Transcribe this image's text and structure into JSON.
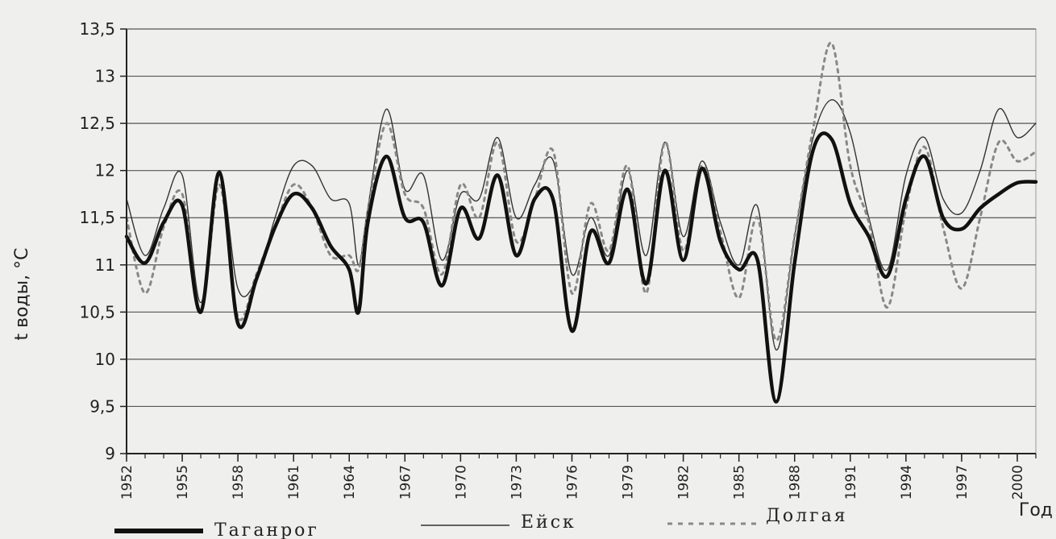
{
  "chart_data": {
    "type": "line",
    "title": "",
    "xlabel": "Год",
    "ylabel": "t воды, °C",
    "x_ticks": [
      "1952",
      "1955",
      "1958",
      "1961",
      "1964",
      "1967",
      "1970",
      "1973",
      "1976",
      "1979",
      "1982",
      "1985",
      "1988",
      "1991",
      "1994",
      "1997",
      "2000"
    ],
    "y_ticks": [
      "9",
      "9,5",
      "10",
      "10,5",
      "11",
      "11,5",
      "12",
      "12,5",
      "13",
      "13,5"
    ],
    "xlim": [
      1952,
      2001
    ],
    "ylim": [
      9,
      13.5
    ],
    "grid": true,
    "legend_position": "bottom",
    "series": [
      {
        "name": "Таганрог",
        "style": "thick-solid",
        "color": "#111111",
        "points": [
          [
            1952,
            11.3
          ],
          [
            1953,
            11.02
          ],
          [
            1954,
            11.45
          ],
          [
            1955,
            11.63
          ],
          [
            1956,
            10.5
          ],
          [
            1957,
            11.98
          ],
          [
            1958,
            10.38
          ],
          [
            1959,
            10.85
          ],
          [
            1960,
            11.4
          ],
          [
            1961,
            11.75
          ],
          [
            1962,
            11.6
          ],
          [
            1963,
            11.2
          ],
          [
            1964,
            10.95
          ],
          [
            1964.5,
            10.5
          ],
          [
            1965,
            11.45
          ],
          [
            1966,
            12.15
          ],
          [
            1967,
            11.5
          ],
          [
            1968,
            11.45
          ],
          [
            1969,
            10.78
          ],
          [
            1970,
            11.6
          ],
          [
            1971,
            11.28
          ],
          [
            1972,
            11.95
          ],
          [
            1973,
            11.1
          ],
          [
            1974,
            11.7
          ],
          [
            1975,
            11.68
          ],
          [
            1976,
            10.3
          ],
          [
            1977,
            11.35
          ],
          [
            1978,
            11.02
          ],
          [
            1979,
            11.8
          ],
          [
            1980,
            10.8
          ],
          [
            1981,
            12.0
          ],
          [
            1982,
            11.05
          ],
          [
            1983,
            12.02
          ],
          [
            1984,
            11.25
          ],
          [
            1985,
            10.95
          ],
          [
            1986,
            11.05
          ],
          [
            1987,
            9.55
          ],
          [
            1988,
            11.02
          ],
          [
            1989,
            12.22
          ],
          [
            1990,
            12.33
          ],
          [
            1991,
            11.65
          ],
          [
            1992,
            11.3
          ],
          [
            1993,
            10.88
          ],
          [
            1994,
            11.7
          ],
          [
            1995,
            12.15
          ],
          [
            1996,
            11.5
          ],
          [
            1997,
            11.38
          ],
          [
            1998,
            11.6
          ],
          [
            1999,
            11.75
          ],
          [
            2000,
            11.87
          ],
          [
            2001,
            11.88
          ]
        ]
      },
      {
        "name": "Ейск",
        "style": "thin-solid",
        "color": "#333333",
        "points": [
          [
            1952,
            11.7
          ],
          [
            1953,
            11.1
          ],
          [
            1954,
            11.6
          ],
          [
            1955,
            11.95
          ],
          [
            1956,
            10.6
          ],
          [
            1957,
            12.0
          ],
          [
            1958,
            10.75
          ],
          [
            1959,
            10.85
          ],
          [
            1960,
            11.5
          ],
          [
            1961,
            12.05
          ],
          [
            1962,
            12.05
          ],
          [
            1963,
            11.7
          ],
          [
            1964,
            11.65
          ],
          [
            1964.5,
            11.0
          ],
          [
            1965,
            11.6
          ],
          [
            1966,
            12.65
          ],
          [
            1967,
            11.8
          ],
          [
            1968,
            11.95
          ],
          [
            1969,
            11.05
          ],
          [
            1970,
            11.75
          ],
          [
            1971,
            11.7
          ],
          [
            1972,
            12.35
          ],
          [
            1973,
            11.5
          ],
          [
            1974,
            11.85
          ],
          [
            1975,
            12.1
          ],
          [
            1976,
            10.9
          ],
          [
            1977,
            11.5
          ],
          [
            1978,
            11.1
          ],
          [
            1979,
            12.0
          ],
          [
            1980,
            11.1
          ],
          [
            1981,
            12.3
          ],
          [
            1982,
            11.3
          ],
          [
            1983,
            12.1
          ],
          [
            1984,
            11.45
          ],
          [
            1985,
            11.0
          ],
          [
            1986,
            11.62
          ],
          [
            1987,
            10.1
          ],
          [
            1988,
            11.3
          ],
          [
            1989,
            12.35
          ],
          [
            1990,
            12.75
          ],
          [
            1991,
            12.4
          ],
          [
            1992,
            11.5
          ],
          [
            1993,
            10.95
          ],
          [
            1994,
            11.95
          ],
          [
            1995,
            12.35
          ],
          [
            1996,
            11.7
          ],
          [
            1997,
            11.55
          ],
          [
            1998,
            12.0
          ],
          [
            1999,
            12.65
          ],
          [
            2000,
            12.35
          ],
          [
            2001,
            12.5
          ]
        ]
      },
      {
        "name": "Долгая",
        "style": "dotted",
        "color": "#888888",
        "points": [
          [
            1952,
            11.5
          ],
          [
            1953,
            10.7
          ],
          [
            1954,
            11.4
          ],
          [
            1955,
            11.75
          ],
          [
            1956,
            10.5
          ],
          [
            1957,
            11.85
          ],
          [
            1958,
            10.45
          ],
          [
            1959,
            10.9
          ],
          [
            1960,
            11.4
          ],
          [
            1961,
            11.85
          ],
          [
            1962,
            11.6
          ],
          [
            1963,
            11.1
          ],
          [
            1964,
            11.1
          ],
          [
            1964.5,
            10.95
          ],
          [
            1965,
            11.55
          ],
          [
            1966,
            12.5
          ],
          [
            1967,
            11.75
          ],
          [
            1968,
            11.6
          ],
          [
            1969,
            10.9
          ],
          [
            1970,
            11.85
          ],
          [
            1971,
            11.5
          ],
          [
            1972,
            12.3
          ],
          [
            1973,
            11.25
          ],
          [
            1974,
            11.7
          ],
          [
            1975,
            12.2
          ],
          [
            1976,
            10.7
          ],
          [
            1977,
            11.65
          ],
          [
            1978,
            11.15
          ],
          [
            1979,
            12.05
          ],
          [
            1980,
            10.7
          ],
          [
            1981,
            12.3
          ],
          [
            1982,
            11.15
          ],
          [
            1983,
            12.05
          ],
          [
            1984,
            11.35
          ],
          [
            1985,
            10.65
          ],
          [
            1986,
            11.5
          ],
          [
            1987,
            10.2
          ],
          [
            1988,
            11.3
          ],
          [
            1989,
            12.45
          ],
          [
            1990,
            13.35
          ],
          [
            1991,
            12.05
          ],
          [
            1992,
            11.45
          ],
          [
            1993,
            10.55
          ],
          [
            1994,
            11.6
          ],
          [
            1995,
            12.25
          ],
          [
            1996,
            11.4
          ],
          [
            1997,
            10.75
          ],
          [
            1998,
            11.5
          ],
          [
            1999,
            12.3
          ],
          [
            2000,
            12.1
          ],
          [
            2001,
            12.2
          ]
        ]
      }
    ]
  }
}
